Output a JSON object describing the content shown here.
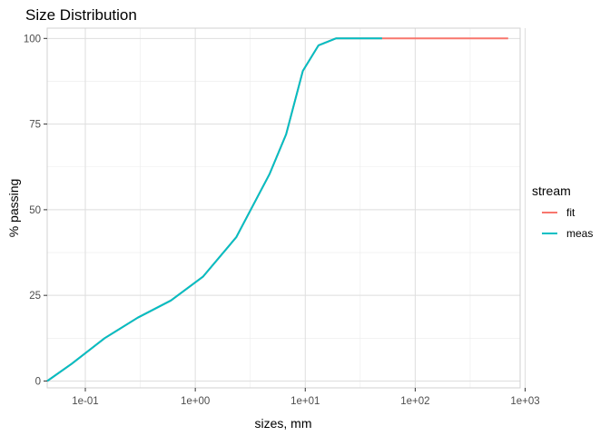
{
  "chart_data": {
    "type": "line",
    "title": "Size Distribution",
    "xlabel": "sizes, mm",
    "ylabel": "% passing",
    "x_scale": "log10",
    "xlim": [
      0.045,
      900
    ],
    "ylim": [
      -2,
      103
    ],
    "x_ticks": [
      0.1,
      1,
      10,
      100,
      1000
    ],
    "x_tick_labels": [
      "1e-01",
      "1e+00",
      "1e+01",
      "1e+02",
      "1e+03"
    ],
    "y_ticks": [
      0,
      25,
      50,
      75,
      100
    ],
    "y_tick_labels": [
      "0",
      "25",
      "50",
      "75",
      "100"
    ],
    "grid": true,
    "legend": {
      "title": "stream",
      "position": "right"
    },
    "series": [
      {
        "name": "fit",
        "color": "#F8766D",
        "x": [
          0.045,
          0.075,
          0.15,
          0.3,
          0.6,
          1.18,
          2.36,
          4.75,
          6.7,
          9.5,
          13.2,
          19,
          26.5,
          37.5,
          50,
          75,
          150,
          300,
          700
        ],
        "y": [
          0,
          5,
          12.5,
          18.5,
          23.5,
          30.5,
          42,
          60.5,
          72,
          90.5,
          98,
          100,
          100,
          100,
          100,
          100,
          100,
          100,
          100
        ]
      },
      {
        "name": "meas",
        "color": "#00BFC4",
        "x": [
          0.045,
          0.075,
          0.15,
          0.3,
          0.6,
          1.18,
          2.36,
          4.75,
          6.7,
          9.5,
          13.2,
          19,
          26.5,
          37.5,
          50
        ],
        "y": [
          0,
          5,
          12.5,
          18.5,
          23.5,
          30.5,
          42,
          60.5,
          72,
          90.5,
          98,
          100,
          100,
          100,
          100
        ]
      }
    ]
  }
}
